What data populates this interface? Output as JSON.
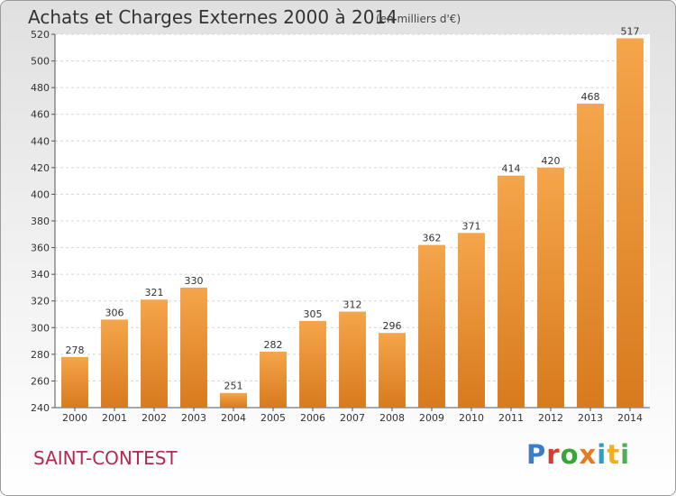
{
  "header": {
    "title": "Achats et Charges Externes 2000 à 2014",
    "subtitle": "(en milliers d'€)"
  },
  "footer": {
    "commune": "SAINT-CONTEST",
    "logo_letters": [
      "P",
      "r",
      "o",
      "x",
      "i",
      "t",
      "i"
    ]
  },
  "colors": {
    "bar_light": "#f5a54a",
    "bar_dark": "#d87a1e",
    "commune_text": "#b5294e",
    "logo": [
      "#3a7ec9",
      "#e1372b",
      "#3aa43a",
      "#e87a1d",
      "#2aa0c8",
      "#f0b020",
      "#4caf50"
    ]
  },
  "chart_data": {
    "type": "bar",
    "title": "Achats et Charges Externes 2000 à 2014",
    "subtitle": "(en milliers d'€)",
    "categories": [
      "2000",
      "2001",
      "2002",
      "2003",
      "2004",
      "2005",
      "2006",
      "2007",
      "2008",
      "2009",
      "2010",
      "2011",
      "2012",
      "2013",
      "2014"
    ],
    "values": [
      278,
      306,
      321,
      330,
      251,
      282,
      305,
      312,
      296,
      362,
      371,
      414,
      420,
      468,
      517
    ],
    "ylim": [
      240,
      520
    ],
    "yticks": [
      240,
      260,
      280,
      300,
      320,
      340,
      360,
      380,
      400,
      420,
      440,
      460,
      480,
      500,
      520
    ],
    "grid": true,
    "data_labels": true
  }
}
